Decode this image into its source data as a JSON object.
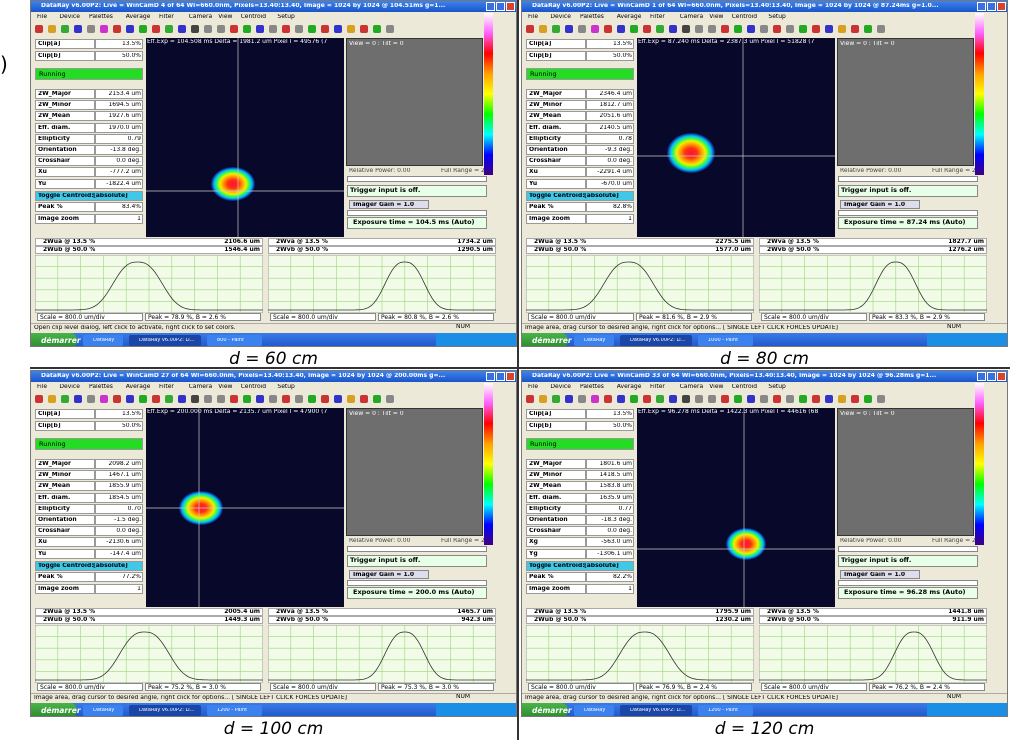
{
  "side_mark": ")",
  "panels": [
    {
      "title": "DataRay v6.00P2: Live = WinCamD 4 of 64     Wl=660.0nm, Pixels=13.40:13.40, Image = 1024 by 1024 @ 104.51ms g=1...",
      "menu": [
        "File",
        "Device",
        "Palettes",
        "Average",
        "Filter",
        "Camera",
        "View",
        "Centroid",
        "Setup"
      ],
      "clips": [
        [
          "Clip[a]",
          "13.5%"
        ],
        [
          "Clip[b]",
          "50.0%"
        ]
      ],
      "running": "Running",
      "measures": [
        [
          "2W_Major",
          "2153.4 um"
        ],
        [
          "2W_Minor",
          "1694.5 um"
        ],
        [
          "2W_Mean",
          "1927.6 um"
        ],
        [
          "Eff. diam.",
          "1970.0 um"
        ],
        [
          "Ellipticity",
          "0.79"
        ],
        [
          "Orientation",
          "-13.8 deg."
        ],
        [
          "Crosshair",
          "0.0 deg."
        ],
        [
          "Xu",
          "-777.2 um"
        ],
        [
          "Yu",
          "-1822.4 um"
        ]
      ],
      "toggle": [
        "Toggle Centroid:",
        "[absolute]"
      ],
      "tail": [
        [
          "Peak %",
          "83.4%"
        ],
        [
          "Image zoom",
          "1"
        ]
      ],
      "exposure_info": "Eff.Exp = 104.508 ms  Delta = 1981.2 um Pixel I = 49576 (7",
      "view": "View = 0 : Tilt = 0",
      "relative_power": "Relative Power: 0.00",
      "full_range": "Full Range = 2",
      "trigger": "Trigger input is off.",
      "gain": "Imager Gain = 1.0",
      "exposure": "Exposure time = 104.5 ms (Auto)",
      "profiles": [
        [
          "2Wua @ 13.5 %",
          "2106.6 um"
        ],
        [
          "2Wub @ 50.0 %",
          "1546.4 um"
        ],
        [
          "2Wva @ 13.5 %",
          "1734.2 um"
        ],
        [
          "2Wvb @ 50.0 %",
          "1290.5 um"
        ]
      ],
      "footers": [
        "Scale = 800.0 um/div",
        "Peak = 78.9 %,  B = 2.6 %",
        "Scale = 800.0 um/div",
        "Peak = 80.8 %,  B = 2.6 %"
      ],
      "status": "Open clip level dialog, left click to activate, right click to set colors.",
      "status_right": "NUM",
      "taskbar": [
        "démarrer",
        "DataRay",
        "DataRay v6.00P2: Li...",
        "800 - Paint"
      ],
      "caption": "d = 60 cm"
    },
    {
      "title": "DataRay v6.00P2: Live = WinCamD 1 of 64     Wl=660.0nm, Pixels=13.40:13.40, Image = 1024 by 1024 @ 87.24ms g=1.0...",
      "menu": [
        "File",
        "Device",
        "Palettes",
        "Average",
        "Filter",
        "Camera",
        "View",
        "Centroid",
        "Setup"
      ],
      "clips": [
        [
          "Clip[a]",
          "13.5%"
        ],
        [
          "Clip[b]",
          "50.0%"
        ]
      ],
      "running": "Running",
      "measures": [
        [
          "2W_Major",
          "2346.4 um"
        ],
        [
          "2W_Minor",
          "1812.7 um"
        ],
        [
          "2W_Mean",
          "2051.6 um"
        ],
        [
          "Eff. diam.",
          "2140.5 um"
        ],
        [
          "Ellipticity",
          "0.78"
        ],
        [
          "Orientation",
          "-9.3 deg."
        ],
        [
          "Crosshair",
          "0.0 deg."
        ],
        [
          "Xu",
          "-2291.4 um"
        ],
        [
          "Yu",
          "-670.0 um"
        ]
      ],
      "toggle": [
        "Toggle Centroid:",
        "[absolute]"
      ],
      "tail": [
        [
          "Peak %",
          "82.8%"
        ],
        [
          "Image zoom",
          "1"
        ]
      ],
      "exposure_info": "Eff.Exp = 87.240 ms  Delta = 2387.3 um Pixel I = 51828 (7",
      "view": "View = 0 : Tilt = 0",
      "relative_power": "Relative Power: 0.00",
      "full_range": "Full Range = 2",
      "trigger": "Trigger input is off.",
      "gain": "Imager Gain = 1.0",
      "exposure": "Exposure time = 87.24 ms (Auto)",
      "profiles": [
        [
          "2Wua @ 13.5 %",
          "2275.5 um"
        ],
        [
          "2Wub @ 50.0 %",
          "1577.0 um"
        ],
        [
          "2Wva @ 13.5 %",
          "1827.7 um"
        ],
        [
          "2Wvb @ 50.0 %",
          "1276.2 um"
        ]
      ],
      "footers": [
        "Scale = 800.0 um/div",
        "Peak = 81.6 %,  B = 2.9 %",
        "Scale = 800.0 um/div",
        "Peak = 83.3 %,  B = 2.9 %"
      ],
      "status": "Image area, drag cursor to desired angle, right click for options... [ SINGLE LEFT CLICK FORCES UPDATE]",
      "status_right": "NUM",
      "taskbar": [
        "démarrer",
        "DataRay",
        "DataRay v6.00P2: Li...",
        "1000 - Paint"
      ],
      "caption": "d = 80 cm"
    },
    {
      "title": "DataRay v6.00P2: Live = WinCamD 27 of 64     Wl=660.0nm, Pixels=13.40:13.40, Image = 1024 by 1024 @ 200.00ms g=...",
      "menu": [
        "File",
        "Device",
        "Palettes",
        "Average",
        "Filter",
        "Camera",
        "View",
        "Centroid",
        "Setup"
      ],
      "clips": [
        [
          "Clip[a]",
          "13.5%"
        ],
        [
          "Clip[b]",
          "50.0%"
        ]
      ],
      "running": "Running",
      "measures": [
        [
          "2W_Major",
          "2098.2 um"
        ],
        [
          "2W_Minor",
          "1467.1 um"
        ],
        [
          "2W_Mean",
          "1855.9 um"
        ],
        [
          "Eff. diam.",
          "1854.5 um"
        ],
        [
          "Ellipticity",
          "0.70"
        ],
        [
          "Orientation",
          "-1.5 deg."
        ],
        [
          "Crosshair",
          "0.0 deg."
        ],
        [
          "Xu",
          "-2130.6 um"
        ],
        [
          "Yu",
          "-147.4 um"
        ]
      ],
      "toggle": [
        "Toggle Centroid:",
        "[absolute]"
      ],
      "tail": [
        [
          "Peak %",
          "77.2%"
        ],
        [
          "Image zoom",
          "1"
        ]
      ],
      "exposure_info": "Eff.Exp = 200.000 ms  Delta = 2135.7 um Pixel I = 47900 (7",
      "view": "View = 0 : Tilt = 0",
      "relative_power": "Relative Power: 0.00",
      "full_range": "Full Range = 2",
      "trigger": "Trigger input is off.",
      "gain": "Imager Gain = 1.0",
      "exposure": "Exposure time = 200.0 ms (Auto)",
      "profiles": [
        [
          "2Wua @ 13.5 %",
          "2005.4 um"
        ],
        [
          "2Wub @ 50.0 %",
          "1449.3 um"
        ],
        [
          "2Wva @ 13.5 %",
          "1465.7 um"
        ],
        [
          "2Wvb @ 50.0 %",
          "942.3 um"
        ]
      ],
      "footers": [
        "Scale = 800.0 um/div",
        "Peak = 75.2 %,  B = 3.0 %",
        "Scale = 800.0 um/div",
        "Peak = 75.3 %,  B = 3.0 %"
      ],
      "status": "Image area, drag cursor to desired angle, right click for options... [ SINGLE LEFT CLICK FORCES UPDATE]",
      "status_right": "NUM",
      "taskbar": [
        "démarrer",
        "DataRay",
        "DataRay v6.00P2: Li...",
        "1200 - Paint"
      ],
      "caption": "d = 100 cm"
    },
    {
      "title": "DataRay v6.00P2: Live = WinCamD 33 of 64     Wl=660.0nm, Pixels=13.40:13.40, Image = 1024 by 1024 @ 96.28ms g=1...",
      "menu": [
        "File",
        "Device",
        "Palettes",
        "Average",
        "Filter",
        "Camera",
        "View",
        "Centroid",
        "Setup"
      ],
      "clips": [
        [
          "Clip[a]",
          "13.5%"
        ],
        [
          "Clip[b]",
          "50.0%"
        ]
      ],
      "running": "Running",
      "measures": [
        [
          "2W_Major",
          "1801.6 um"
        ],
        [
          "2W_Minor",
          "1418.5 um"
        ],
        [
          "2W_Mean",
          "1583.8 um"
        ],
        [
          "Eff. diam.",
          "1635.9 um"
        ],
        [
          "Ellipticity",
          "0.77"
        ],
        [
          "Orientation",
          "-18.3 deg."
        ],
        [
          "Crosshair",
          "0.0 deg."
        ],
        [
          "Xg",
          "-563.0 um"
        ],
        [
          "Yg",
          "-1306.1 um"
        ]
      ],
      "toggle": [
        "Toggle Centroid:",
        "[absolute]"
      ],
      "tail": [
        [
          "Peak %",
          "82.2%"
        ],
        [
          "Image zoom",
          "1"
        ]
      ],
      "exposure_info": "Eff.Exp = 96.278 ms  Delta = 1422.3 um Pixel I = 44616 (68",
      "view": "View = 0 : Tilt = 0",
      "relative_power": "Relative Power: 0.00",
      "full_range": "Full Range = 2",
      "trigger": "Trigger input is off.",
      "gain": "Imager Gain = 1.0",
      "exposure": "Exposure time = 96.28 ms (Auto)",
      "profiles": [
        [
          "2Wua @ 13.5 %",
          "1795.9 um"
        ],
        [
          "2Wub @ 50.0 %",
          "1230.2 um"
        ],
        [
          "2Wva @ 13.5 %",
          "1441.8 um"
        ],
        [
          "2Wvb @ 50.0 %",
          "911.9 um"
        ]
      ],
      "footers": [
        "Scale = 800.0 um/div",
        "Peak = 76.9 %,  B = 2.4 %",
        "Scale = 800.0 um/div",
        "Peak = 76.2 %,  B = 2.4 %"
      ],
      "status": "Image area, drag cursor to desired angle, right click for options... [ SINGLE LEFT CLICK FORCES UPDATE]",
      "status_right": "NUM",
      "taskbar": [
        "démarrer",
        "DataRay",
        "DataRay v6.00P2: Li...",
        "1200 - Paint"
      ],
      "caption": "d = 120 cm"
    }
  ]
}
